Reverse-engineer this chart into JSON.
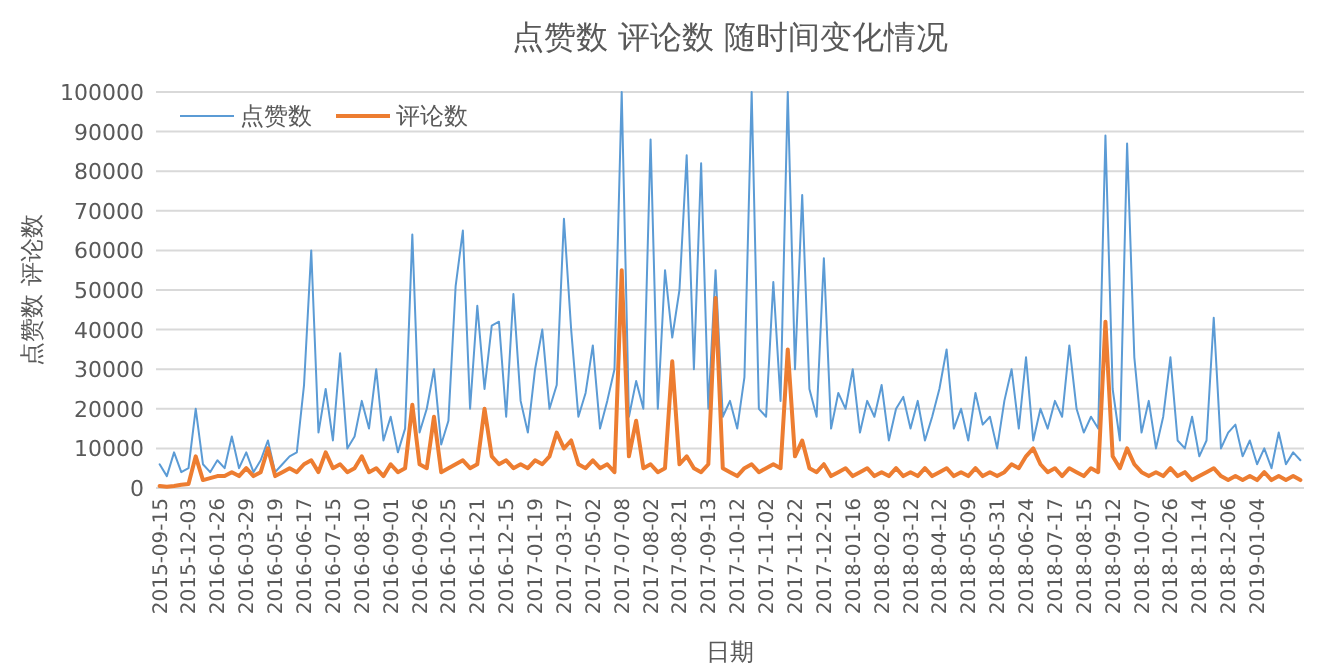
{
  "chart_data": {
    "type": "line",
    "title": "点赞数 评论数 随时间变化情况",
    "xlabel": "日期",
    "ylabel": "点赞数 评论数",
    "categories": [
      "2015-09-15",
      null,
      null,
      null,
      "2015-12-03",
      null,
      null,
      null,
      "2016-01-26",
      null,
      null,
      null,
      "2016-03-29",
      null,
      null,
      null,
      "2016-05-19",
      null,
      null,
      null,
      "2016-06-17",
      null,
      null,
      null,
      "2016-07-15",
      null,
      null,
      null,
      "2016-08-10",
      null,
      null,
      null,
      "2016-09-01",
      null,
      null,
      null,
      "2016-09-26",
      null,
      null,
      null,
      "2016-10-25",
      null,
      null,
      null,
      "2016-11-21",
      null,
      null,
      null,
      "2016-12-15",
      null,
      null,
      null,
      "2017-01-19",
      null,
      null,
      null,
      "2017-03-17",
      null,
      null,
      null,
      "2017-05-02",
      null,
      null,
      null,
      "2017-07-08",
      null,
      null,
      null,
      "2017-08-02",
      null,
      null,
      null,
      "2017-08-21",
      null,
      null,
      null,
      "2017-09-13",
      null,
      null,
      null,
      "2017-10-12",
      null,
      null,
      null,
      "2017-11-02",
      null,
      null,
      null,
      "2017-11-22",
      null,
      null,
      null,
      "2017-12-21",
      null,
      null,
      null,
      "2018-01-16",
      null,
      null,
      null,
      "2018-02-08",
      null,
      null,
      null,
      "2018-03-12",
      null,
      null,
      null,
      "2018-04-12",
      null,
      null,
      null,
      "2018-05-09",
      null,
      null,
      null,
      "2018-05-31",
      null,
      null,
      null,
      "2018-06-24",
      null,
      null,
      null,
      "2018-07-17",
      null,
      null,
      null,
      "2018-08-15",
      null,
      null,
      null,
      "2018-09-12",
      null,
      null,
      null,
      "2018-10-07",
      null,
      null,
      null,
      "2018-10-26",
      null,
      null,
      null,
      "2018-11-14",
      null,
      null,
      null,
      "2018-12-06",
      null,
      null,
      null,
      "2019-01-04",
      null,
      null,
      null,
      null,
      null,
      null
    ],
    "series": [
      {
        "name": "点赞数",
        "color": "#5b9bd5",
        "values": [
          6000,
          3000,
          9000,
          4000,
          5000,
          20000,
          6000,
          4000,
          7000,
          5000,
          13000,
          5000,
          9000,
          4000,
          7000,
          12000,
          4000,
          6000,
          8000,
          9000,
          26000,
          60000,
          14000,
          25000,
          12000,
          34000,
          10000,
          13000,
          22000,
          15000,
          30000,
          12000,
          18000,
          9000,
          15000,
          64000,
          14000,
          20000,
          30000,
          11000,
          17000,
          51000,
          65000,
          20000,
          46000,
          25000,
          41000,
          42000,
          18000,
          49000,
          22000,
          14000,
          30000,
          40000,
          20000,
          26000,
          68000,
          40000,
          18000,
          24000,
          36000,
          15000,
          22000,
          30000,
          100000,
          18000,
          27000,
          20000,
          88000,
          20000,
          55000,
          38000,
          50000,
          84000,
          30000,
          82000,
          20000,
          55000,
          18000,
          22000,
          15000,
          28000,
          100000,
          20000,
          18000,
          52000,
          22000,
          100000,
          30000,
          74000,
          25000,
          18000,
          58000,
          15000,
          24000,
          20000,
          30000,
          14000,
          22000,
          18000,
          26000,
          12000,
          20000,
          23000,
          15000,
          22000,
          12000,
          18000,
          25000,
          35000,
          15000,
          20000,
          12000,
          24000,
          16000,
          18000,
          10000,
          22000,
          30000,
          15000,
          33000,
          12000,
          20000,
          15000,
          22000,
          18000,
          36000,
          20000,
          14000,
          18000,
          15000,
          89000,
          25000,
          12000,
          87000,
          33000,
          14000,
          22000,
          10000,
          18000,
          33000,
          12000,
          10000,
          18000,
          8000,
          12000,
          43000,
          10000,
          14000,
          16000,
          8000,
          12000,
          6000,
          10000,
          5000,
          14000,
          6000,
          9000,
          7000
        ]
      },
      {
        "name": "评论数",
        "color": "#ed7d31",
        "values": [
          500,
          300,
          500,
          800,
          1000,
          8000,
          2000,
          2500,
          3000,
          3000,
          4000,
          3000,
          5000,
          3000,
          4000,
          10000,
          3000,
          4000,
          5000,
          4000,
          6000,
          7000,
          4000,
          9000,
          5000,
          6000,
          4000,
          5000,
          8000,
          4000,
          5000,
          3000,
          6000,
          4000,
          5000,
          21000,
          6000,
          5000,
          18000,
          4000,
          5000,
          6000,
          7000,
          5000,
          6000,
          20000,
          8000,
          6000,
          7000,
          5000,
          6000,
          5000,
          7000,
          6000,
          8000,
          14000,
          10000,
          12000,
          6000,
          5000,
          7000,
          5000,
          6000,
          4000,
          55000,
          8000,
          17000,
          5000,
          6000,
          4000,
          5000,
          32000,
          6000,
          8000,
          5000,
          4000,
          6000,
          48000,
          5000,
          4000,
          3000,
          5000,
          6000,
          4000,
          5000,
          6000,
          5000,
          35000,
          8000,
          12000,
          5000,
          4000,
          6000,
          3000,
          4000,
          5000,
          3000,
          4000,
          5000,
          3000,
          4000,
          3000,
          5000,
          3000,
          4000,
          3000,
          5000,
          3000,
          4000,
          5000,
          3000,
          4000,
          3000,
          5000,
          3000,
          4000,
          3000,
          4000,
          6000,
          5000,
          8000,
          10000,
          6000,
          4000,
          5000,
          3000,
          5000,
          4000,
          3000,
          5000,
          4000,
          42000,
          8000,
          5000,
          10000,
          6000,
          4000,
          3000,
          4000,
          3000,
          5000,
          3000,
          4000,
          2000,
          3000,
          4000,
          5000,
          3000,
          2000,
          3000,
          2000,
          3000,
          2000,
          4000,
          2000,
          3000,
          2000,
          3000,
          2000
        ]
      }
    ],
    "ylim": [
      0,
      100000
    ],
    "yticks": [
      0,
      10000,
      20000,
      30000,
      40000,
      50000,
      60000,
      70000,
      80000,
      90000,
      100000
    ],
    "grid": "y",
    "legend": "top left"
  }
}
